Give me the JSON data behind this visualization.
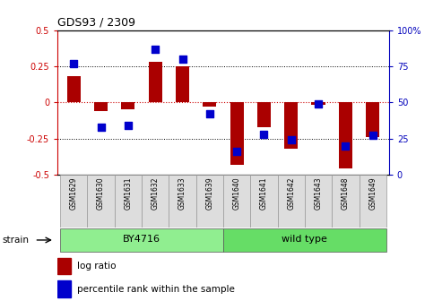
{
  "title": "GDS93 / 2309",
  "samples": [
    "GSM1629",
    "GSM1630",
    "GSM1631",
    "GSM1632",
    "GSM1633",
    "GSM1639",
    "GSM1640",
    "GSM1641",
    "GSM1642",
    "GSM1643",
    "GSM1648",
    "GSM1649"
  ],
  "log_ratio": [
    0.18,
    -0.06,
    -0.05,
    0.28,
    0.25,
    -0.03,
    -0.43,
    -0.17,
    -0.32,
    -0.02,
    -0.46,
    -0.24
  ],
  "percentile_rank": [
    77,
    33,
    34,
    87,
    80,
    42,
    16,
    28,
    24,
    49,
    20,
    27
  ],
  "strain_groups": [
    {
      "label": "BY4716",
      "start": 0,
      "end": 5,
      "color": "#90EE90"
    },
    {
      "label": "wild type",
      "start": 6,
      "end": 11,
      "color": "#66DD66"
    }
  ],
  "bar_color": "#AA0000",
  "dot_color": "#0000CC",
  "ylim": [
    -0.5,
    0.5
  ],
  "yticks_left": [
    -0.5,
    -0.25,
    0,
    0.25,
    0.5
  ],
  "bar_width": 0.5,
  "dot_size": 30,
  "left_tick_color": "#CC0000",
  "right_tick_color": "#0000BB",
  "zero_line_color": "#CC0000",
  "strain_label": "strain"
}
